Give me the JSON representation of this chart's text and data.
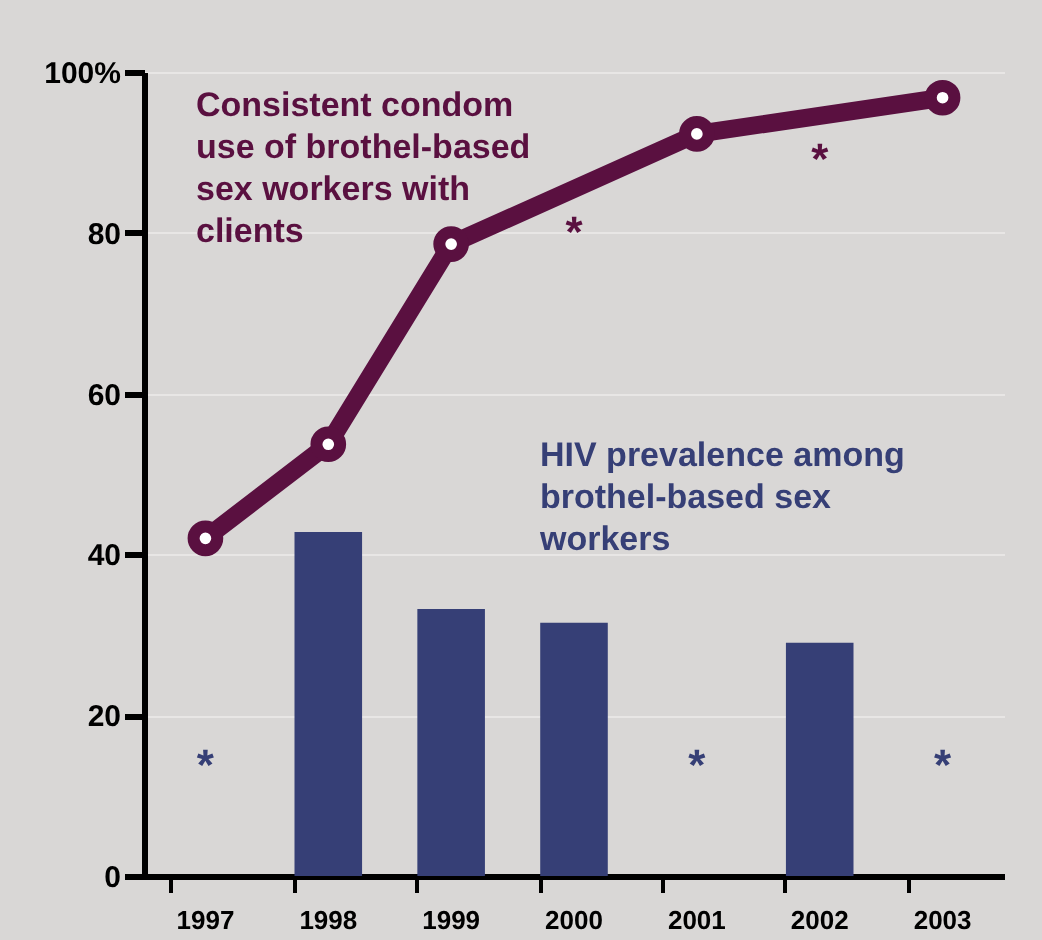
{
  "chart_data": {
    "type": "bar",
    "categories": [
      "1997",
      "1998",
      "1999",
      "2000",
      "2001",
      "2002",
      "2003"
    ],
    "series": [
      {
        "name": "Consistent condom use of brothel-based sex workers with clients",
        "type": "line",
        "color": "#5a1040",
        "values": [
          42,
          53.7,
          78.6,
          null,
          92.3,
          null,
          96.8
        ]
      },
      {
        "name": "HIV prevalence among brothel-based sex workers",
        "color": "#363f76",
        "values": [
          null,
          42.8,
          33.2,
          31.5,
          null,
          29.0,
          null
        ]
      }
    ],
    "annotations": [
      "*",
      "*",
      "*",
      "*",
      "*"
    ],
    "ylim": [
      0,
      100
    ],
    "yticks": [
      0,
      20,
      40,
      60,
      80,
      {
        "value": 100,
        "label": "100%"
      }
    ],
    "grid": "y",
    "marker": "circle"
  }
}
